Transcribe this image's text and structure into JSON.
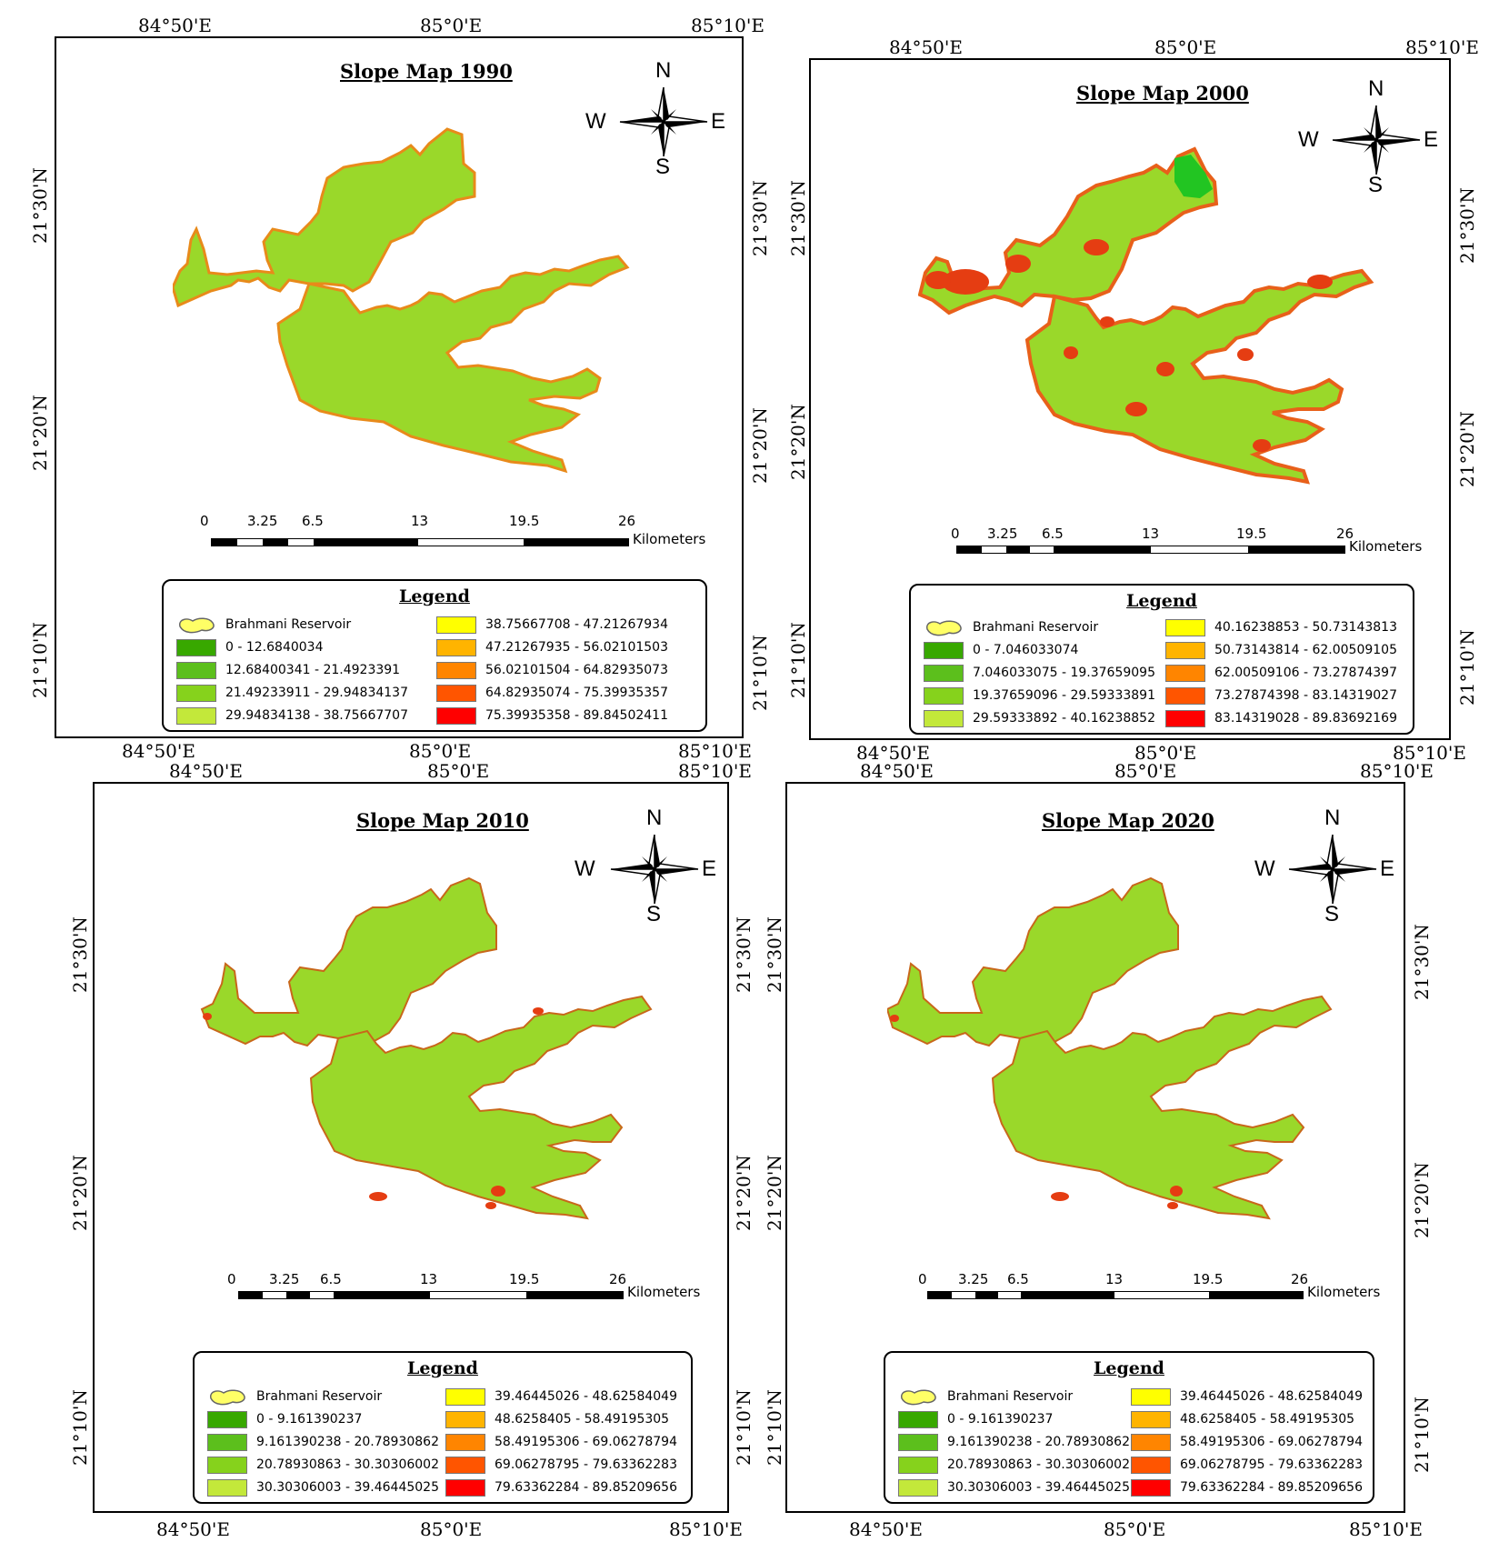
{
  "panels": [
    {
      "title": "Slope Map 1990",
      "lon_top": [
        "84°50'E",
        "85°0'E",
        "85°10'E"
      ],
      "lon_bottom": [
        "84°50'E",
        "85°0'E",
        "85°10'E"
      ],
      "lat_left": [
        "21°30'N",
        "21°20'N",
        "21°10'N"
      ],
      "lat_right": [
        "21°30'N",
        "21°20'N",
        "21°10'N"
      ],
      "scale_labels": [
        "0",
        "3.25",
        "6.5",
        "13",
        "19.5",
        "26"
      ],
      "scale_unit": "Kilometers",
      "legend_title": "Legend",
      "reservoir_label": "Brahmani Reservoir",
      "classes": [
        {
          "range": "0 - 12.6840034",
          "color": "#38a800"
        },
        {
          "range": "12.68400341 - 21.4923391",
          "color": "#5cbf1c"
        },
        {
          "range": "21.49233911 - 29.94834137",
          "color": "#86d21c"
        },
        {
          "range": "29.94834138 - 38.75667707",
          "color": "#c3e83a"
        },
        {
          "range": "38.75667708 - 47.21267934",
          "color": "#ffff00"
        },
        {
          "range": "47.21267935 - 56.02101503",
          "color": "#ffb400"
        },
        {
          "range": "56.02101504 - 64.82935073",
          "color": "#ff8500"
        },
        {
          "range": "64.82935074 - 75.39935357",
          "color": "#ff5500"
        },
        {
          "range": "75.39935358 - 89.84502411",
          "color": "#ff0000"
        }
      ]
    },
    {
      "title": "Slope Map 2000",
      "lon_top": [
        "84°50'E",
        "85°0'E",
        "85°10'E"
      ],
      "lon_bottom": [
        "84°50'E",
        "85°0'E",
        "85°10'E"
      ],
      "lat_left": [
        "21°30'N",
        "21°20'N",
        "21°10'N"
      ],
      "lat_right": [
        "21°30'N",
        "21°20'N",
        "21°10'N"
      ],
      "scale_labels": [
        "0",
        "3.25",
        "6.5",
        "13",
        "19.5",
        "26"
      ],
      "scale_unit": "Kilometers",
      "legend_title": "Legend",
      "reservoir_label": "Brahmani Reservoir",
      "classes": [
        {
          "range": "0 - 7.046033074",
          "color": "#38a800"
        },
        {
          "range": "7.046033075 - 19.37659095",
          "color": "#5cbf1c"
        },
        {
          "range": "19.37659096 - 29.59333891",
          "color": "#86d21c"
        },
        {
          "range": "29.59333892 - 40.16238852",
          "color": "#c3e83a"
        },
        {
          "range": "40.16238853 - 50.73143813",
          "color": "#ffff00"
        },
        {
          "range": "50.73143814 - 62.00509105",
          "color": "#ffb400"
        },
        {
          "range": "62.00509106 - 73.27874397",
          "color": "#ff8500"
        },
        {
          "range": "73.27874398 - 83.14319027",
          "color": "#ff5500"
        },
        {
          "range": "83.14319028 - 89.83692169",
          "color": "#ff0000"
        }
      ]
    },
    {
      "title": "Slope Map 2010",
      "lon_top": [
        "84°50'E",
        "85°0'E",
        "85°10'E"
      ],
      "lon_bottom": [
        "84°50'E",
        "85°0'E",
        "85°10'E"
      ],
      "lat_left": [
        "21°30'N",
        "21°20'N",
        "21°10'N"
      ],
      "lat_right": [
        "21°30'N",
        "21°20'N",
        "21°10'N"
      ],
      "scale_labels": [
        "0",
        "3.25",
        "6.5",
        "13",
        "19.5",
        "26"
      ],
      "scale_unit": "Kilometers",
      "legend_title": "Legend",
      "reservoir_label": "Brahmani Reservoir",
      "classes": [
        {
          "range": "0 - 9.161390237",
          "color": "#38a800"
        },
        {
          "range": "9.161390238 - 20.78930862",
          "color": "#5cbf1c"
        },
        {
          "range": "20.78930863 - 30.30306002",
          "color": "#86d21c"
        },
        {
          "range": "30.30306003 - 39.46445025",
          "color": "#c3e83a"
        },
        {
          "range": "39.46445026 - 48.62584049",
          "color": "#ffff00"
        },
        {
          "range": "48.6258405 - 58.49195305",
          "color": "#ffb400"
        },
        {
          "range": "58.49195306 - 69.06278794",
          "color": "#ff8500"
        },
        {
          "range": "69.06278795 - 79.63362283",
          "color": "#ff5500"
        },
        {
          "range": "79.63362284 - 89.85209656",
          "color": "#ff0000"
        }
      ]
    },
    {
      "title": "Slope Map 2020",
      "lon_top": [
        "84°50'E",
        "85°0'E",
        "85°10'E"
      ],
      "lon_bottom": [
        "84°50'E",
        "85°0'E",
        "85°10'E"
      ],
      "lat_left": [
        "21°30'N",
        "21°20'N",
        "21°10'N"
      ],
      "lat_right": [
        "21°30'N",
        "21°20'N",
        "21°10'N"
      ],
      "scale_labels": [
        "0",
        "3.25",
        "6.5",
        "13",
        "19.5",
        "26"
      ],
      "scale_unit": "Kilometers",
      "legend_title": "Legend",
      "reservoir_label": "Brahmani Reservoir",
      "classes": [
        {
          "range": "0 - 9.161390237",
          "color": "#38a800"
        },
        {
          "range": "9.161390238 - 20.78930862",
          "color": "#5cbf1c"
        },
        {
          "range": "20.78930863 - 30.30306002",
          "color": "#86d21c"
        },
        {
          "range": "30.30306003 - 39.46445025",
          "color": "#c3e83a"
        },
        {
          "range": "39.46445026 - 48.62584049",
          "color": "#ffff00"
        },
        {
          "range": "48.6258405 - 58.49195305",
          "color": "#ffb400"
        },
        {
          "range": "58.49195306 - 69.06278794",
          "color": "#ff8500"
        },
        {
          "range": "69.06278795 - 79.63362283",
          "color": "#ff5500"
        },
        {
          "range": "79.63362284 - 89.85209656",
          "color": "#ff0000"
        }
      ]
    }
  ],
  "compass": {
    "n": "N",
    "s": "S",
    "e": "E",
    "w": "W"
  },
  "colors": {
    "reservoir_symbol": "#ffff66",
    "map_base": "#9ad82a",
    "map_edge": "#e88a1a"
  }
}
